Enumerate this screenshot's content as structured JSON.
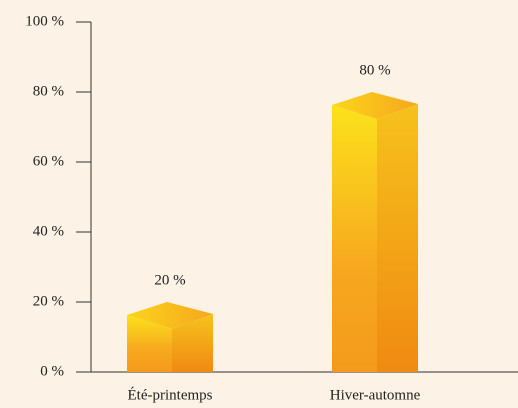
{
  "chart_data": {
    "type": "bar3d",
    "categories": [
      "Été-printemps",
      "Hiver-automne"
    ],
    "values": [
      20,
      80
    ],
    "value_labels": [
      "20 %",
      "80 %"
    ],
    "color": "#f5a623",
    "ylim": [
      0,
      100
    ],
    "yticks": [
      {
        "value": 0,
        "label": "0 %"
      },
      {
        "value": 20,
        "label": "20 %"
      },
      {
        "value": 40,
        "label": "40 %"
      },
      {
        "value": 60,
        "label": "60 %"
      },
      {
        "value": 80,
        "label": "80 %"
      },
      {
        "value": 100,
        "label": "100 %"
      }
    ]
  }
}
